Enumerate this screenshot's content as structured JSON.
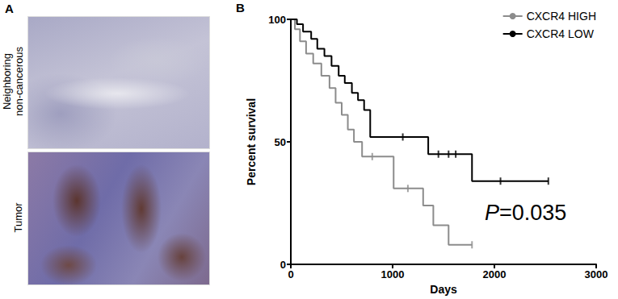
{
  "panel_a": {
    "label": "A",
    "images": [
      {
        "label_lines": [
          "Neighboring",
          "non-cancerous"
        ]
      },
      {
        "label_lines": [
          "Tumor"
        ]
      }
    ]
  },
  "chart_data": {
    "type": "line",
    "panel_label": "B",
    "xlabel": "Days",
    "ylabel": "Percent survival",
    "xlim": [
      0,
      3000
    ],
    "xticks": [
      0,
      1000,
      2000,
      3000
    ],
    "ylim": [
      0,
      100
    ],
    "yticks": [
      0,
      50,
      100
    ],
    "grid": false,
    "legend": "upper right",
    "annotation": "P=0.035",
    "line_style": "step",
    "series": [
      {
        "name": "CXCR4 HIGH",
        "color": "#8c8c8c",
        "marker": "|",
        "x": [
          0,
          40,
          90,
          150,
          220,
          300,
          380,
          440,
          500,
          560,
          620,
          700,
          1010,
          1300,
          1400,
          1550,
          1780
        ],
        "values": [
          100,
          96,
          91,
          86,
          82,
          77,
          72,
          66,
          61,
          55,
          50,
          44,
          31,
          24,
          16,
          8,
          8
        ],
        "censored_x": [
          800,
          1150,
          1780
        ],
        "censored_values": [
          44,
          31,
          8
        ]
      },
      {
        "name": "CXCR4 LOW",
        "color": "#000000",
        "marker": "|",
        "x": [
          0,
          60,
          120,
          200,
          260,
          330,
          400,
          470,
          530,
          600,
          660,
          720,
          780,
          1350,
          1780,
          2530
        ],
        "values": [
          100,
          98,
          95,
          92,
          88,
          85,
          81,
          77,
          74,
          70,
          67,
          63,
          52,
          45,
          34,
          34
        ],
        "censored_x": [
          1100,
          1450,
          1550,
          1620,
          2060,
          2530
        ],
        "censored_values": [
          52,
          45,
          45,
          45,
          34,
          34
        ]
      }
    ]
  }
}
